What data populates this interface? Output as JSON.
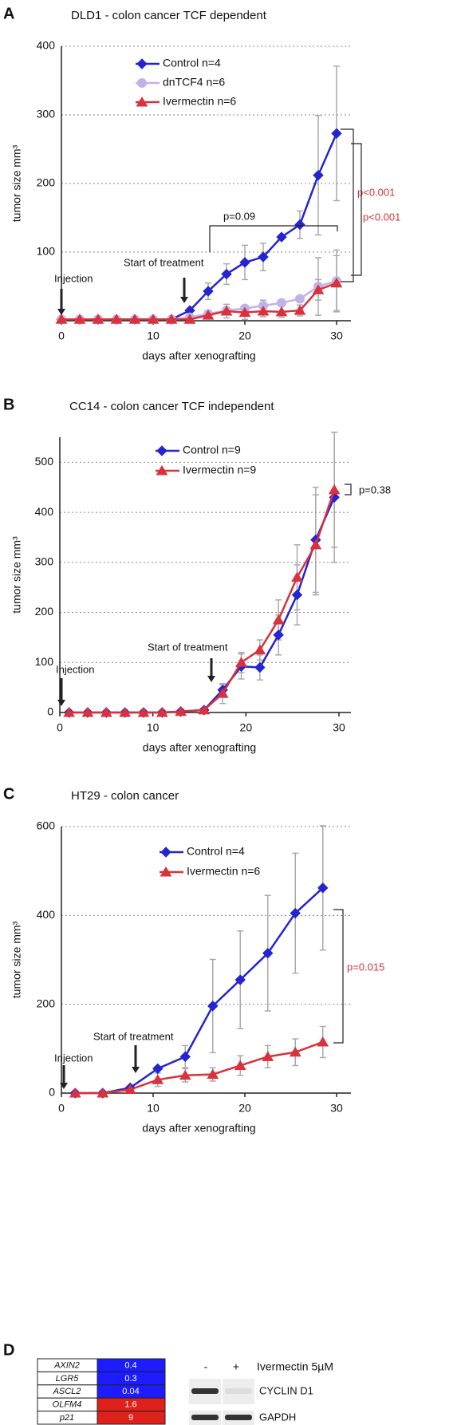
{
  "chart_data": [
    {
      "type": "line",
      "panel_label": "A",
      "title": "DLD1 - colon cancer TCF dependent",
      "x_label": "days after xenografting",
      "y_label": "tumor size mm³",
      "x": [
        0,
        2,
        4,
        6,
        8,
        10,
        12,
        14,
        16,
        18,
        20,
        22,
        24,
        26,
        28,
        30
      ],
      "xlim": [
        0,
        30
      ],
      "xticks": [
        0,
        10,
        20,
        30
      ],
      "ylim": [
        0,
        400
      ],
      "yticks": [
        100,
        200,
        300,
        400
      ],
      "grid": true,
      "series": [
        {
          "name": "Control n=4",
          "color": "#2424d0",
          "marker": "diamond",
          "values": [
            2,
            2,
            2,
            2,
            2,
            2,
            2,
            15,
            43,
            68,
            85,
            93,
            122,
            140,
            212,
            273
          ],
          "errors": [
            null,
            null,
            null,
            null,
            null,
            null,
            null,
            null,
            12,
            15,
            25,
            20,
            null,
            20,
            87,
            98
          ]
        },
        {
          "name": "dnTCF4 n=6",
          "color": "#c2b2ea",
          "marker": "circle",
          "values": [
            2,
            2,
            2,
            2,
            2,
            2,
            2,
            5,
            10,
            15,
            18,
            22,
            26,
            32,
            50,
            58
          ],
          "errors": [
            null,
            null,
            null,
            null,
            null,
            null,
            null,
            null,
            null,
            null,
            null,
            8,
            null,
            null,
            42,
            45
          ]
        },
        {
          "name": "Ivermectin n=6",
          "color": "#d8323c",
          "marker": "triangle",
          "values": [
            2,
            2,
            2,
            2,
            2,
            2,
            2,
            2,
            8,
            14,
            12,
            14,
            13,
            15,
            45,
            55
          ],
          "errors": [
            null,
            null,
            null,
            null,
            null,
            null,
            null,
            null,
            5,
            10,
            10,
            8,
            8,
            8,
            15,
            40
          ]
        }
      ],
      "annotations": [
        {
          "text": "Start of treatment",
          "color": "#111"
        },
        {
          "text": "Injection",
          "color": "#111"
        },
        {
          "text": "p=0.09",
          "color": "#111"
        },
        {
          "text": "p<0.001",
          "color": "#d8323c"
        },
        {
          "text": "p<0.001",
          "color": "#d8323c"
        }
      ]
    },
    {
      "type": "line",
      "panel_label": "B",
      "title": "CC14 - colon cancer TCF independent",
      "x_label": "days after xenografting",
      "y_label": "tumor size mm³",
      "x": [
        1,
        3,
        5,
        7,
        9,
        11,
        13,
        15.5,
        17.5,
        19.5,
        21.5,
        23.5,
        25.5,
        27.5,
        29.5
      ],
      "xlim": [
        0,
        30
      ],
      "xticks": [
        0,
        10,
        20,
        30
      ],
      "ylim": [
        0,
        550
      ],
      "yticks": [
        0,
        100,
        200,
        300,
        400,
        500
      ],
      "grid": true,
      "series": [
        {
          "name": "Control n=9",
          "color": "#2424d0",
          "marker": "diamond",
          "values": [
            0,
            0,
            0,
            0,
            0,
            0,
            2,
            5,
            45,
            92,
            90,
            155,
            235,
            345,
            430
          ],
          "errors": [
            null,
            null,
            null,
            null,
            null,
            null,
            null,
            null,
            10,
            25,
            25,
            40,
            60,
            105,
            130
          ]
        },
        {
          "name": "Ivermectin n=9",
          "color": "#d8323c",
          "marker": "triangle",
          "values": [
            0,
            0,
            0,
            0,
            0,
            0,
            2,
            5,
            38,
            100,
            125,
            185,
            270,
            335,
            445
          ],
          "errors": [
            null,
            null,
            null,
            null,
            null,
            null,
            null,
            null,
            20,
            20,
            20,
            40,
            65,
            100,
            115
          ]
        }
      ],
      "annotations": [
        {
          "text": "Injection",
          "color": "#111"
        },
        {
          "text": "Start of treatment",
          "color": "#111"
        },
        {
          "text": "p=0.38",
          "color": "#111"
        }
      ]
    },
    {
      "type": "line",
      "panel_label": "C",
      "title": "HT29 - colon cancer",
      "x_label": "days after xenografting",
      "y_label": "tumor size mm³",
      "x": [
        1.5,
        4.5,
        7.5,
        10.5,
        13.5,
        16.5,
        19.5,
        22.5,
        25.5,
        28.5
      ],
      "xlim": [
        0,
        30
      ],
      "xticks": [
        0,
        10,
        20,
        30
      ],
      "ylim": [
        0,
        600
      ],
      "yticks": [
        0,
        200,
        400,
        600
      ],
      "grid": true,
      "series": [
        {
          "name": "Control n=4",
          "color": "#2424d0",
          "marker": "diamond",
          "values": [
            0,
            0,
            12,
            55,
            82,
            196,
            255,
            315,
            405,
            462
          ],
          "errors": [
            null,
            null,
            null,
            5,
            25,
            105,
            110,
            130,
            135,
            140
          ]
        },
        {
          "name": "Ivermectin n=6",
          "color": "#d8323c",
          "marker": "triangle",
          "values": [
            0,
            0,
            8,
            30,
            40,
            42,
            62,
            82,
            92,
            115
          ],
          "errors": [
            null,
            null,
            null,
            15,
            15,
            15,
            22,
            25,
            30,
            35
          ]
        }
      ],
      "annotations": [
        {
          "text": "Injection",
          "color": "#111"
        },
        {
          "text": "Start of treatment",
          "color": "#111"
        },
        {
          "text": "p=0.015",
          "color": "#d8323c"
        }
      ]
    }
  ],
  "panel_d": {
    "panel_label": "D",
    "table": {
      "rows": [
        [
          "AXIN2",
          0.4
        ],
        [
          "LGR5",
          0.3
        ],
        [
          "ASCL2",
          0.04
        ],
        [
          "OLFM4",
          1.6
        ],
        [
          "p21",
          9
        ]
      ],
      "colors": [
        "#1c1cff",
        "#1c1cff",
        "#1c1cff",
        "#e0201a",
        "#e0201a"
      ]
    },
    "blot": {
      "lanes": [
        "-",
        "+"
      ],
      "treatment": "Ivermectin 5µM",
      "bands": [
        "CYCLIN D1",
        "GAPDH"
      ]
    }
  }
}
